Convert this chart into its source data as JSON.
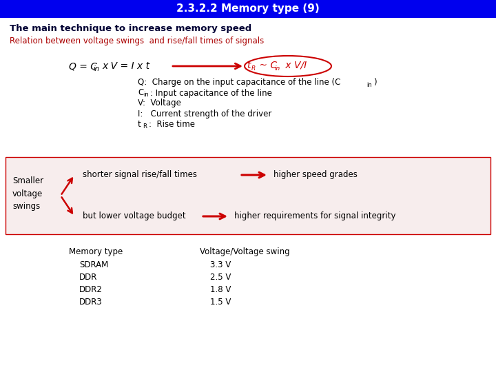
{
  "title": "2.3.2.2 Memory type (9)",
  "title_bg": "#0000ee",
  "title_color": "#ffffff",
  "title_fontsize": 11,
  "main_heading": "The main technique to increase memory speed",
  "main_heading_color": "#000033",
  "subtitle": "Relation between voltage swings  and rise/fall times of signals",
  "subtitle_color": "#aa0000",
  "box_color": "#cc0000",
  "pink_bg": "#f7eded",
  "pink_border": "#cc0000",
  "smaller_text": "Smaller\nvoltage\nswings",
  "arrow_color": "#cc0000",
  "upper_branch": "shorter signal rise/fall times",
  "upper_result": "higher speed grades",
  "lower_branch": "but lower voltage budget",
  "lower_result": "higher requirements for signal integrity",
  "table_header_col1": "Memory type",
  "table_header_col2": "Voltage/Voltage swing",
  "table_data": [
    [
      "SDRAM",
      "3.3 V"
    ],
    [
      "DDR",
      "2.5 V"
    ],
    [
      "DDR2",
      "1.8 V"
    ],
    [
      "DDR3",
      "1.5 V"
    ]
  ],
  "bg_color": "#ffffff",
  "text_color": "#000000"
}
